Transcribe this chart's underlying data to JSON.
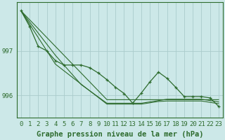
{
  "background_color": "#cce8e8",
  "grid_color": "#aacccc",
  "line_color": "#2d6b2d",
  "text_color": "#2d6b2d",
  "xlabel": "Graphe pression niveau de la mer (hPa)",
  "xlabel_fontsize": 7.5,
  "tick_fontsize": 6.5,
  "ylabel_ticks": [
    996,
    997
  ],
  "xlim": [
    -0.5,
    23.5
  ],
  "ylim": [
    995.5,
    998.1
  ],
  "xticks": [
    0,
    1,
    2,
    3,
    4,
    5,
    6,
    7,
    8,
    9,
    10,
    11,
    12,
    13,
    14,
    15,
    16,
    17,
    18,
    19,
    20,
    21,
    22,
    23
  ],
  "series_main": [
    997.9,
    997.55,
    997.1,
    997.0,
    996.78,
    996.68,
    996.68,
    996.68,
    996.62,
    996.5,
    996.35,
    996.18,
    996.04,
    995.82,
    996.05,
    996.3,
    996.52,
    996.38,
    996.18,
    995.97,
    995.97,
    995.97,
    995.94,
    995.75
  ],
  "series_straight1": [
    997.9,
    997.7,
    997.5,
    997.3,
    997.1,
    996.9,
    996.7,
    996.5,
    996.3,
    996.1,
    995.9,
    995.9,
    995.9,
    995.9,
    995.9,
    995.9,
    995.9,
    995.9,
    995.9,
    995.9,
    995.9,
    995.9,
    995.9,
    995.9
  ],
  "series_straight2": [
    997.9,
    997.65,
    997.4,
    997.15,
    996.9,
    996.68,
    996.46,
    996.24,
    996.1,
    995.96,
    995.82,
    995.82,
    995.82,
    995.82,
    995.82,
    995.85,
    995.88,
    995.91,
    995.91,
    995.91,
    995.91,
    995.91,
    995.88,
    995.85
  ],
  "series_straight3": [
    997.9,
    997.6,
    997.3,
    997.0,
    996.7,
    996.55,
    996.4,
    996.25,
    996.1,
    995.95,
    995.8,
    995.8,
    995.8,
    995.8,
    995.8,
    995.83,
    995.86,
    995.87,
    995.87,
    995.87,
    995.87,
    995.87,
    995.84,
    995.81
  ]
}
